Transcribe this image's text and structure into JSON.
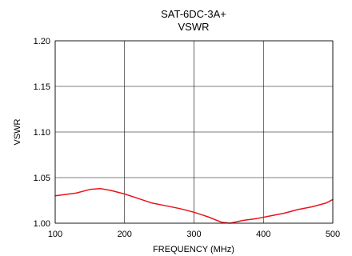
{
  "chart_data": {
    "type": "line",
    "title": "SAT-6DC-3A+",
    "subtitle": "VSWR",
    "xlabel": "FREQUENCY (MHz)",
    "ylabel": "VSWR",
    "xlim": [
      100,
      500
    ],
    "ylim": [
      1.0,
      1.2
    ],
    "x_ticks": [
      100,
      200,
      300,
      400,
      500
    ],
    "y_ticks": [
      "1.00",
      "1.05",
      "1.10",
      "1.15",
      "1.20"
    ],
    "grid": true,
    "colors": {
      "series": "#e8141b",
      "grid": "#000000"
    },
    "series": [
      {
        "x": [
          100,
          130,
          150,
          165,
          180,
          200,
          220,
          240,
          260,
          280,
          300,
          320,
          340,
          352,
          370,
          390,
          410,
          430,
          450,
          470,
          490,
          500
        ],
        "values": [
          1.03,
          1.033,
          1.037,
          1.038,
          1.036,
          1.032,
          1.027,
          1.022,
          1.019,
          1.016,
          1.012,
          1.007,
          1.001,
          1.0,
          1.003,
          1.005,
          1.008,
          1.011,
          1.015,
          1.018,
          1.022,
          1.026
        ]
      }
    ]
  }
}
